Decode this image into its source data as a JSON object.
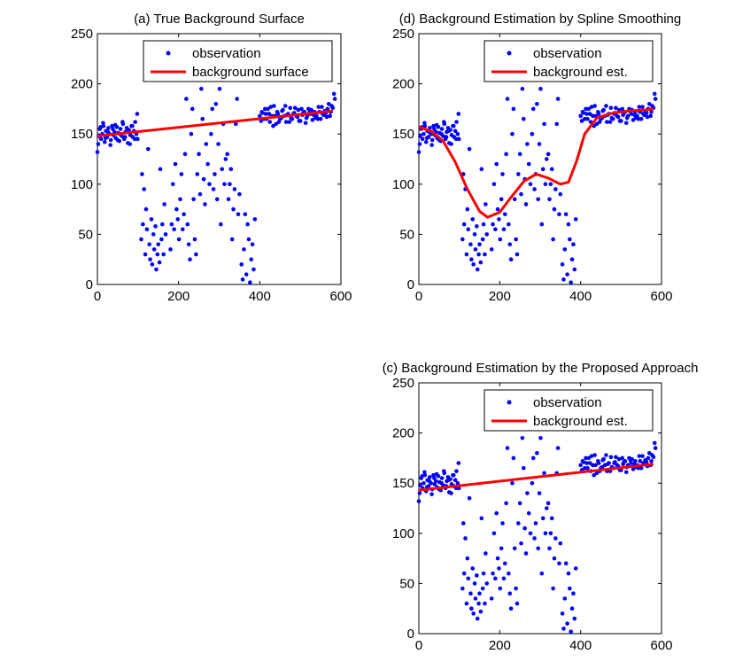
{
  "chart_data": [
    {
      "type": "scatter",
      "title": "(a) True Background Surface",
      "xlabel": "",
      "ylabel": "",
      "xlim": [
        0,
        600
      ],
      "ylim": [
        0,
        250
      ],
      "xticks": [
        0,
        200,
        400,
        600
      ],
      "yticks": [
        0,
        50,
        100,
        150,
        200,
        250
      ],
      "legend_position": "top-right",
      "series": [
        {
          "name": "observation",
          "kind": "points",
          "color": "#0000ff",
          "ref": "observation"
        },
        {
          "name": "background surface",
          "kind": "line",
          "color": "#ff0000",
          "x": [
            0,
            580
          ],
          "y": [
            148,
            173
          ]
        }
      ]
    },
    {
      "type": "scatter",
      "title": "(d) Background Estimation by Spline Smoothing",
      "xlabel": "",
      "ylabel": "",
      "xlim": [
        0,
        600
      ],
      "ylim": [
        0,
        250
      ],
      "xticks": [
        0,
        200,
        400,
        600
      ],
      "yticks": [
        0,
        50,
        100,
        150,
        200,
        250
      ],
      "legend_position": "top-right",
      "series": [
        {
          "name": "observation",
          "kind": "points",
          "color": "#0000ff",
          "ref": "observation"
        },
        {
          "name": "background est.",
          "kind": "line",
          "color": "#ff0000",
          "x": [
            0,
            30,
            60,
            90,
            120,
            150,
            170,
            200,
            230,
            260,
            290,
            320,
            350,
            370,
            390,
            410,
            440,
            480,
            520,
            560,
            580
          ],
          "y": [
            157,
            153,
            143,
            122,
            95,
            73,
            67,
            72,
            88,
            103,
            110,
            106,
            100,
            102,
            123,
            150,
            166,
            171,
            173,
            174,
            175
          ]
        }
      ]
    },
    {
      "type": "scatter",
      "title": "(c) Background Estimation by the Proposed Approach",
      "xlabel": "",
      "ylabel": "",
      "xlim": [
        0,
        600
      ],
      "ylim": [
        0,
        250
      ],
      "xticks": [
        0,
        200,
        400,
        600
      ],
      "yticks": [
        0,
        50,
        100,
        150,
        200,
        250
      ],
      "legend_position": "top-right",
      "series": [
        {
          "name": "observation",
          "kind": "points",
          "color": "#0000ff",
          "ref": "observation"
        },
        {
          "name": "background est.",
          "kind": "line",
          "color": "#ff0000",
          "x": [
            0,
            580
          ],
          "y": [
            143,
            169
          ]
        }
      ]
    }
  ],
  "observation": {
    "x": [
      0,
      3,
      6,
      9,
      12,
      15,
      18,
      21,
      24,
      27,
      30,
      33,
      36,
      39,
      42,
      45,
      48,
      51,
      54,
      57,
      60,
      63,
      66,
      69,
      72,
      75,
      78,
      81,
      84,
      87,
      90,
      93,
      96,
      99,
      2,
      8,
      14,
      20,
      26,
      32,
      38,
      44,
      50,
      56,
      62,
      68,
      74,
      80,
      86,
      92,
      98,
      108,
      110,
      112,
      115,
      118,
      120,
      122,
      125,
      128,
      130,
      133,
      135,
      138,
      140,
      143,
      145,
      148,
      150,
      153,
      155,
      158,
      160,
      163,
      165,
      168,
      180,
      183,
      186,
      189,
      192,
      195,
      198,
      201,
      204,
      207,
      210,
      213,
      216,
      219,
      222,
      225,
      228,
      231,
      234,
      237,
      240,
      243,
      246,
      250,
      253,
      256,
      259,
      262,
      265,
      268,
      272,
      276,
      280,
      283,
      286,
      289,
      292,
      295,
      298,
      301,
      304,
      307,
      310,
      313,
      316,
      320,
      323,
      326,
      329,
      332,
      335,
      338,
      341,
      344,
      347,
      350,
      355,
      358,
      361,
      364,
      367,
      370,
      373,
      376,
      379,
      382,
      385,
      388,
      400,
      405,
      410,
      415,
      420,
      425,
      430,
      435,
      440,
      445,
      450,
      455,
      460,
      465,
      470,
      475,
      480,
      485,
      490,
      495,
      500,
      505,
      510,
      515,
      520,
      525,
      530,
      535,
      540,
      545,
      550,
      555,
      560,
      565,
      570,
      575,
      580,
      585,
      403,
      413,
      423,
      433,
      443,
      453,
      463,
      473,
      483,
      493,
      503,
      513,
      523,
      533,
      543,
      553,
      563,
      573,
      583,
      407,
      417,
      427,
      437,
      447,
      457,
      467,
      477,
      487,
      497,
      507,
      517,
      527,
      537,
      547,
      557,
      567,
      577
    ],
    "y": [
      132,
      148,
      155,
      145,
      150,
      158,
      142,
      153,
      147,
      156,
      150,
      144,
      158,
      149,
      152,
      146,
      157,
      151,
      143,
      155,
      148,
      160,
      145,
      152,
      156,
      141,
      154,
      149,
      158,
      147,
      153,
      162,
      150,
      145,
      140,
      157,
      161,
      146,
      152,
      139,
      155,
      159,
      144,
      150,
      162,
      147,
      153,
      140,
      158,
      145,
      170,
      45,
      110,
      60,
      95,
      30,
      75,
      55,
      135,
      40,
      25,
      65,
      20,
      50,
      35,
      58,
      15,
      30,
      40,
      22,
      115,
      45,
      60,
      30,
      80,
      50,
      35,
      60,
      100,
      55,
      120,
      75,
      65,
      45,
      85,
      110,
      55,
      70,
      130,
      185,
      60,
      40,
      25,
      150,
      175,
      85,
      45,
      30,
      110,
      130,
      90,
      195,
      165,
      105,
      80,
      140,
      120,
      100,
      150,
      175,
      95,
      110,
      180,
      85,
      140,
      195,
      60,
      115,
      160,
      100,
      125,
      130,
      85,
      100,
      115,
      45,
      75,
      95,
      160,
      185,
      70,
      90,
      20,
      5,
      35,
      70,
      10,
      60,
      45,
      2,
      25,
      40,
      15,
      65,
      168,
      172,
      165,
      170,
      175,
      162,
      168,
      178,
      160,
      170,
      165,
      173,
      168,
      162,
      170,
      176,
      165,
      171,
      168,
      174,
      163,
      169,
      172,
      166,
      175,
      170,
      164,
      172,
      168,
      177,
      165,
      170,
      173,
      167,
      180,
      172,
      176,
      185,
      163,
      175,
      170,
      158,
      172,
      166,
      178,
      162,
      170,
      167,
      175,
      161,
      173,
      169,
      165,
      177,
      171,
      168,
      190,
      171,
      165,
      177,
      168,
      162,
      174,
      169,
      166,
      176,
      163,
      171,
      168,
      174,
      166,
      172,
      169,
      175,
      178
    ]
  }
}
